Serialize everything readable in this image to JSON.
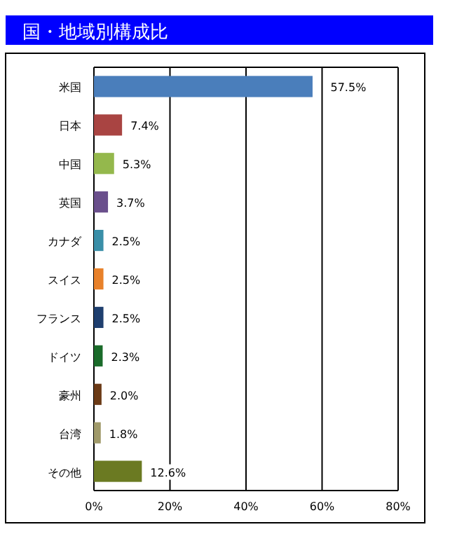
{
  "chart_data": {
    "type": "bar",
    "orientation": "horizontal",
    "title": "国・地域別構成比",
    "categories": [
      "米国",
      "日本",
      "中国",
      "英国",
      "カナダ",
      "スイス",
      "フランス",
      "ドイツ",
      "豪州",
      "台湾",
      "その他"
    ],
    "values": [
      57.5,
      7.4,
      5.3,
      3.7,
      2.5,
      2.5,
      2.5,
      2.3,
      2.0,
      1.8,
      12.6
    ],
    "colors": [
      "#4a7ebb",
      "#a94442",
      "#94b84c",
      "#6a4f8c",
      "#3a8fa8",
      "#e8812a",
      "#1f3f6f",
      "#1a6b2a",
      "#6b3a16",
      "#a09a6a",
      "#6b7a22"
    ],
    "value_labels": [
      "57.5%",
      "7.4%",
      "5.3%",
      "3.7%",
      "2.5%",
      "2.5%",
      "2.5%",
      "2.3%",
      "2.0%",
      "1.8%",
      "12.6%"
    ],
    "xlim": [
      0,
      80
    ],
    "xticks": [
      {
        "value": 0,
        "label": "0%"
      },
      {
        "value": 20,
        "label": "20%"
      },
      {
        "value": 40,
        "label": "40%"
      },
      {
        "value": 60,
        "label": "60%"
      },
      {
        "value": 80,
        "label": "80%"
      }
    ],
    "grid": "x"
  }
}
